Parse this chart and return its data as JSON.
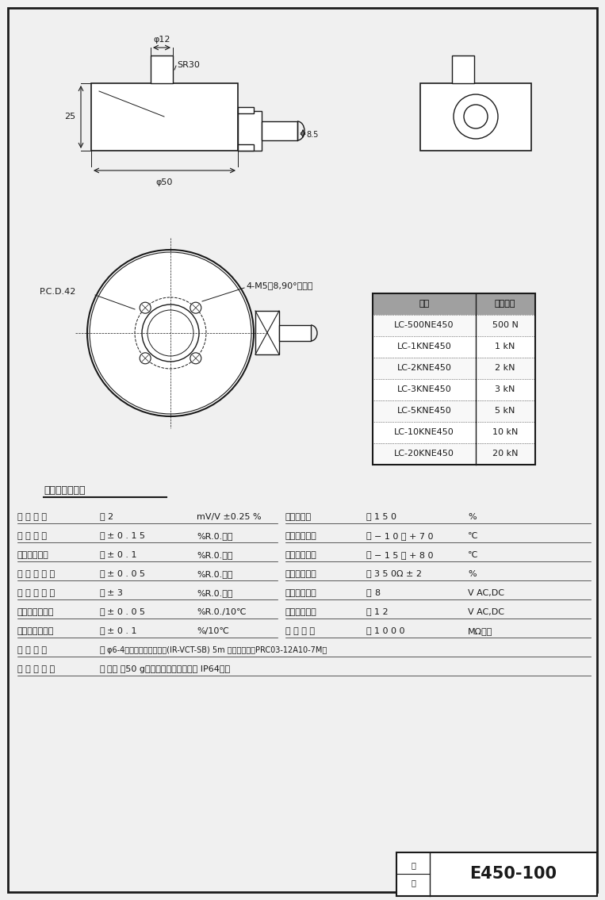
{
  "bg_color": "#f0f0f0",
  "border_color": "#000000",
  "line_color": "#1a1a1a",
  "title_box": {
    "label1": "図",
    "label2": "番",
    "code": "E450-100"
  },
  "spec_section_title": "仕　　　　　樹",
  "spec_rows_left": [
    [
      "定 格 出 力",
      "2",
      "mV/V ±0.25 %"
    ],
    [
      "非 直 線 性",
      "± 0 . 1 5",
      "%R.0.以内"
    ],
    [
      "ヒステリシス",
      "± 0 . 1",
      "%R.0.以内"
    ],
    [
      "繰 り 返 し 性",
      "± 0 . 0 5",
      "%R.0.以内"
    ],
    [
      "零 バ ラ ン ス",
      "± 3",
      "%R.0.以内"
    ],
    [
      "零点の温度影響",
      "± 0 . 0 5",
      "%R.0./10℃"
    ],
    [
      "出力の温度影響",
      "± 0 . 1",
      "%/10℃"
    ]
  ],
  "spec_rows_right": [
    [
      "許容過負荷",
      "1 5 0",
      "%"
    ],
    [
      "温度補償範囲",
      "− 1 0 ～ + 7 0",
      "℃"
    ],
    [
      "許容温度範囲",
      "− 1 5 ～ + 8 0",
      "℃"
    ],
    [
      "入出力抗抗値",
      "3 5 0Ω ± 2",
      "%"
    ],
    [
      "推奨入力電圧",
      "8",
      "V AC,DC"
    ],
    [
      "許容入力電圧",
      "1 2",
      "V AC,DC"
    ],
    [
      "絶 縁 抗 抗",
      "1 0 0 0",
      "MΩ以上"
    ]
  ],
  "cable_row": [
    "ケ ー ブ ル",
    "φ6-4芯シールドケーブル(IR-VCT-SB) 5m 先端プラグ（PRC03-12A10-7M）"
  ],
  "other_row": [
    "そ 　 の 　 他",
    "質量 約50 g（ケーブルは含まず） IP64相当"
  ],
  "table_models": [
    [
      "LC-500NE450",
      "500 N"
    ],
    [
      "LC-1KNE450",
      "1 kN"
    ],
    [
      "LC-2KNE450",
      "2 kN"
    ],
    [
      "LC-3KNE450",
      "3 kN"
    ],
    [
      "LC-5KNE450",
      "5 kN"
    ],
    [
      "LC-10KNE450",
      "10 kN"
    ],
    [
      "LC-20KNE450",
      "20 kN"
    ]
  ],
  "table_headers": [
    "型式",
    "定格容量"
  ],
  "dim_labels": {
    "phi12": "φ12",
    "sr30": "SR30",
    "dim25": "25",
    "phi50": "φ50",
    "dim85": "8.5",
    "pcd42": "P.C.D.42",
    "bolt_label": "4-M5深8,90°　等配"
  }
}
